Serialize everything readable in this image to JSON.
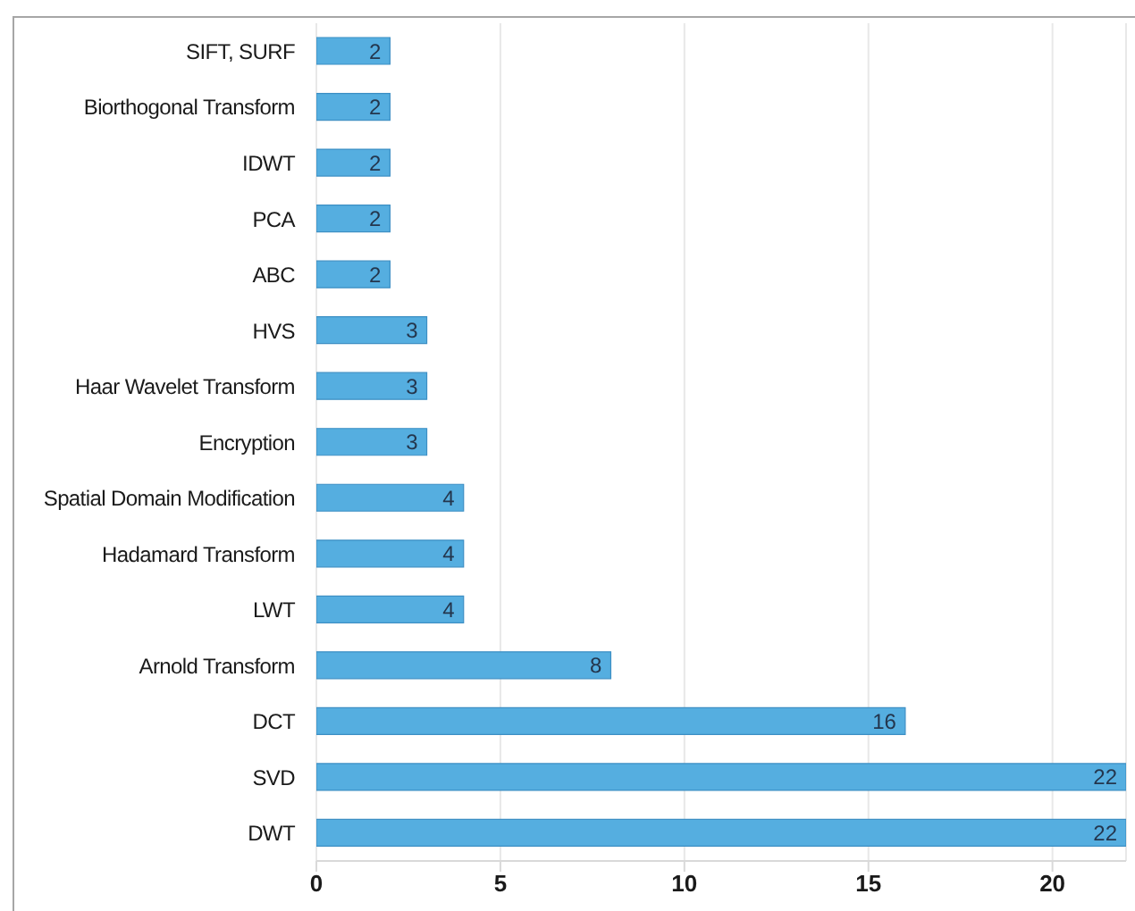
{
  "chart_data": {
    "type": "bar",
    "orientation": "horizontal",
    "categories": [
      "SIFT, SURF",
      "Biorthogonal Transform",
      "IDWT",
      "PCA",
      "ABC",
      "HVS",
      "Haar Wavelet Transform",
      "Encryption",
      "Spatial Domain Modification",
      "Hadamard Transform",
      "LWT",
      "Arnold Transform",
      "DCT",
      "SVD",
      "DWT"
    ],
    "values": [
      2,
      2,
      2,
      2,
      2,
      3,
      3,
      3,
      4,
      4,
      4,
      8,
      16,
      22,
      22
    ],
    "color": "#55aee0",
    "xlim": [
      0,
      22
    ],
    "xticks": [
      0,
      5,
      10,
      15,
      20
    ],
    "grid": "x",
    "data_labels": true
  }
}
